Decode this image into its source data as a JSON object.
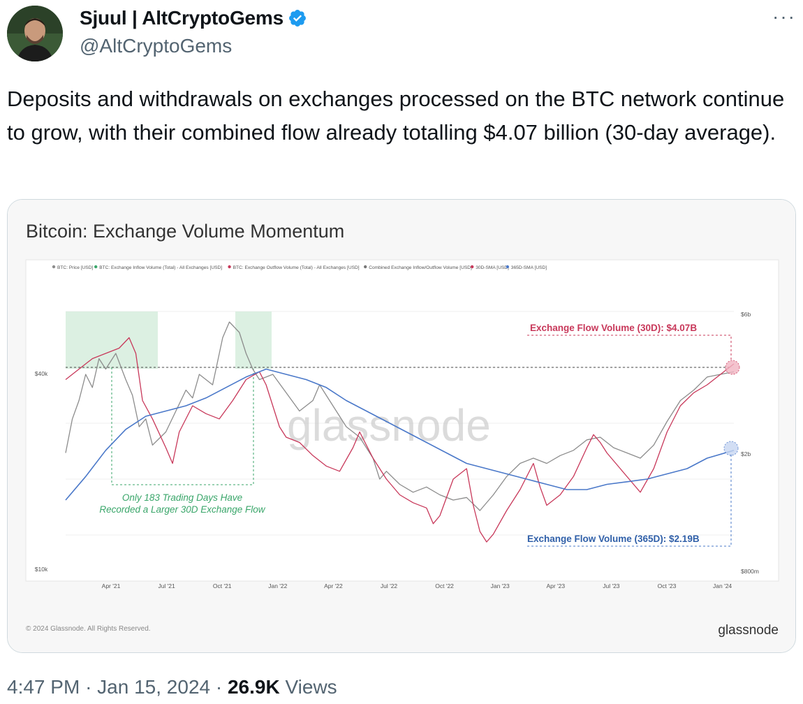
{
  "author": {
    "display_name": "Sjuul | AltCryptoGems",
    "handle": "@AltCryptoGems",
    "verified_icon": "verified-badge-icon",
    "badge_color": "#1d9bf0"
  },
  "tweet": {
    "text": "Deposits and withdrawals on exchanges processed on the BTC network continue to grow, with their combined flow already totalling $4.07 billion (30-day average).",
    "more_label": "···"
  },
  "meta": {
    "time": "4:47 PM",
    "date": "Jan 15, 2024",
    "views_count": "26.9K",
    "views_label": "Views",
    "separator": "·"
  },
  "chart_data": {
    "type": "line",
    "title": "Bitcoin: Exchange Volume Momentum",
    "legend": [
      {
        "label": "BTC: Price [USD]",
        "color": "#8c8c8c"
      },
      {
        "label": "BTC: Exchange Inflow Volume (Total) - All Exchanges [USD]",
        "color": "#3aa66a"
      },
      {
        "label": "BTC: Exchange Outflow Volume (Total) - All Exchanges [USD]",
        "color": "#c8385a"
      },
      {
        "label": "Combined Exchange Inflow/Outflow Volume [USD]",
        "color": "#777777"
      },
      {
        "label": "30D-SMA [USD]",
        "color": "#c8385a"
      },
      {
        "label": "365D-SMA [USD]",
        "color": "#4a78c9"
      }
    ],
    "x_ticks": [
      "Apr '21",
      "Jul '21",
      "Oct '21",
      "Jan '22",
      "Apr '22",
      "Jul '22",
      "Oct '22",
      "Jan '23",
      "Apr '23",
      "Jul '23",
      "Oct '23",
      "Jan '24"
    ],
    "y_left_ticks": [
      "$40k",
      "$10k"
    ],
    "y_right_ticks": [
      "$6b",
      "$2b",
      "$800m"
    ],
    "annotations": {
      "flow_30d": "Exchange Flow Volume (30D): $4.07B",
      "flow_365d": "Exchange Flow Volume (365D): $2.19B",
      "trading_days_line1": "Only 183 Trading Days Have",
      "trading_days_line2": "Recorded a Larger 30D Exchange Flow"
    },
    "watermark": "glassnode",
    "footer_copyright": "© 2024 Glassnode. All Rights Reserved.",
    "footer_brand": "glassnode",
    "series": [
      {
        "name": "BTC: Price [USD]",
        "color": "#8c8c8c",
        "points": [
          [
            0,
            42
          ],
          [
            0.01,
            55
          ],
          [
            0.02,
            62
          ],
          [
            0.03,
            72
          ],
          [
            0.04,
            67
          ],
          [
            0.05,
            78
          ],
          [
            0.06,
            74
          ],
          [
            0.075,
            80
          ],
          [
            0.09,
            70
          ],
          [
            0.1,
            64
          ],
          [
            0.11,
            52
          ],
          [
            0.12,
            55
          ],
          [
            0.13,
            45
          ],
          [
            0.15,
            50
          ],
          [
            0.165,
            58
          ],
          [
            0.18,
            66
          ],
          [
            0.19,
            63
          ],
          [
            0.2,
            72
          ],
          [
            0.22,
            68
          ],
          [
            0.235,
            86
          ],
          [
            0.245,
            92
          ],
          [
            0.26,
            88
          ],
          [
            0.27,
            80
          ],
          [
            0.28,
            74
          ],
          [
            0.29,
            70
          ],
          [
            0.31,
            72
          ],
          [
            0.33,
            65
          ],
          [
            0.35,
            58
          ],
          [
            0.37,
            62
          ],
          [
            0.38,
            68
          ],
          [
            0.4,
            60
          ],
          [
            0.42,
            52
          ],
          [
            0.44,
            48
          ],
          [
            0.46,
            40
          ],
          [
            0.47,
            32
          ],
          [
            0.48,
            35
          ],
          [
            0.5,
            30
          ],
          [
            0.52,
            27
          ],
          [
            0.54,
            29
          ],
          [
            0.56,
            26
          ],
          [
            0.58,
            24
          ],
          [
            0.6,
            25
          ],
          [
            0.62,
            20
          ],
          [
            0.64,
            26
          ],
          [
            0.66,
            33
          ],
          [
            0.68,
            38
          ],
          [
            0.7,
            40
          ],
          [
            0.72,
            38
          ],
          [
            0.74,
            41
          ],
          [
            0.76,
            43
          ],
          [
            0.78,
            47
          ],
          [
            0.8,
            48
          ],
          [
            0.82,
            44
          ],
          [
            0.84,
            42
          ],
          [
            0.86,
            40
          ],
          [
            0.88,
            45
          ],
          [
            0.9,
            54
          ],
          [
            0.92,
            62
          ],
          [
            0.94,
            66
          ],
          [
            0.96,
            71
          ],
          [
            0.98,
            72
          ],
          [
            1.0,
            73
          ]
        ]
      },
      {
        "name": "30D-SMA [USD]",
        "color": "#c8385a",
        "points": [
          [
            0,
            70
          ],
          [
            0.02,
            74
          ],
          [
            0.04,
            78
          ],
          [
            0.06,
            80
          ],
          [
            0.08,
            82
          ],
          [
            0.095,
            86
          ],
          [
            0.105,
            80
          ],
          [
            0.115,
            62
          ],
          [
            0.13,
            55
          ],
          [
            0.15,
            44
          ],
          [
            0.16,
            38
          ],
          [
            0.17,
            50
          ],
          [
            0.19,
            60
          ],
          [
            0.21,
            57
          ],
          [
            0.23,
            55
          ],
          [
            0.25,
            62
          ],
          [
            0.27,
            70
          ],
          [
            0.29,
            73
          ],
          [
            0.3,
            68
          ],
          [
            0.32,
            52
          ],
          [
            0.33,
            48
          ],
          [
            0.35,
            46
          ],
          [
            0.37,
            41
          ],
          [
            0.39,
            37
          ],
          [
            0.41,
            35
          ],
          [
            0.43,
            44
          ],
          [
            0.44,
            50
          ],
          [
            0.46,
            40
          ],
          [
            0.48,
            32
          ],
          [
            0.5,
            26
          ],
          [
            0.52,
            23
          ],
          [
            0.54,
            21
          ],
          [
            0.55,
            15
          ],
          [
            0.56,
            18
          ],
          [
            0.58,
            32
          ],
          [
            0.6,
            36
          ],
          [
            0.61,
            22
          ],
          [
            0.62,
            12
          ],
          [
            0.63,
            8
          ],
          [
            0.64,
            11
          ],
          [
            0.66,
            20
          ],
          [
            0.68,
            28
          ],
          [
            0.7,
            38
          ],
          [
            0.71,
            29
          ],
          [
            0.72,
            22
          ],
          [
            0.74,
            26
          ],
          [
            0.76,
            33
          ],
          [
            0.78,
            44
          ],
          [
            0.79,
            49
          ],
          [
            0.8,
            46
          ],
          [
            0.81,
            42
          ],
          [
            0.83,
            36
          ],
          [
            0.85,
            30
          ],
          [
            0.86,
            27
          ],
          [
            0.88,
            36
          ],
          [
            0.9,
            50
          ],
          [
            0.92,
            60
          ],
          [
            0.94,
            65
          ],
          [
            0.96,
            68
          ],
          [
            0.98,
            72
          ],
          [
            1.0,
            76
          ]
        ]
      },
      {
        "name": "365D-SMA [USD]",
        "color": "#4a78c9",
        "points": [
          [
            0,
            24
          ],
          [
            0.03,
            33
          ],
          [
            0.06,
            43
          ],
          [
            0.09,
            51
          ],
          [
            0.12,
            56
          ],
          [
            0.15,
            58
          ],
          [
            0.18,
            60
          ],
          [
            0.21,
            63
          ],
          [
            0.24,
            67
          ],
          [
            0.27,
            71
          ],
          [
            0.3,
            74
          ],
          [
            0.33,
            72
          ],
          [
            0.36,
            70
          ],
          [
            0.39,
            67
          ],
          [
            0.42,
            62
          ],
          [
            0.45,
            58
          ],
          [
            0.48,
            54
          ],
          [
            0.51,
            50
          ],
          [
            0.54,
            46
          ],
          [
            0.57,
            42
          ],
          [
            0.6,
            38
          ],
          [
            0.63,
            36
          ],
          [
            0.66,
            34
          ],
          [
            0.69,
            32
          ],
          [
            0.72,
            30
          ],
          [
            0.75,
            28
          ],
          [
            0.78,
            28
          ],
          [
            0.81,
            30
          ],
          [
            0.84,
            31
          ],
          [
            0.87,
            32
          ],
          [
            0.9,
            34
          ],
          [
            0.93,
            36
          ],
          [
            0.96,
            40
          ],
          [
            1.0,
            43
          ]
        ]
      }
    ]
  }
}
